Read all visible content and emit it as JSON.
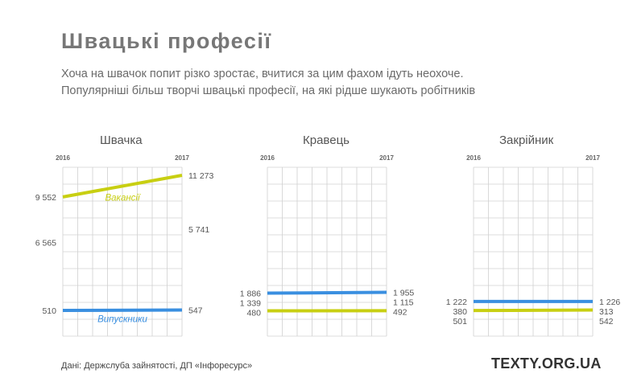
{
  "header": {
    "title": "Швацькі професії",
    "subtitle_lines": [
      "Хоча на швачок попит різко зростає, вчитися за цим фахом ідуть неохоче.",
      "Популярніші більш творчі швацькі професії, на які рідше шукають робітників"
    ]
  },
  "footer": {
    "source": "Дані: Держслуба зайнятості, ДП «Інфоресурс»",
    "logo": "TEXTY.ORG.UA"
  },
  "colors": {
    "vacancies": "#c8cf12",
    "graduates": "#3a8fe0",
    "grid": "#d0d0d0"
  },
  "chart_data": [
    {
      "type": "line",
      "title": "Швачка",
      "x": [
        "2016",
        "2017"
      ],
      "ylim": [
        0,
        11273
      ],
      "series": [
        {
          "name": "Вакансії",
          "key": "vacancies",
          "values": [
            9552,
            11273
          ],
          "labels": [
            "9 552",
            "11 273"
          ]
        },
        {
          "name": "Випускники",
          "key": "graduates",
          "values": [
            510,
            547
          ],
          "labels": [
            "510",
            "547"
          ]
        }
      ],
      "extra_labels": {
        "left": [
          "6 565"
        ],
        "right": [
          "5 741"
        ]
      }
    },
    {
      "type": "line",
      "title": "Кравець",
      "x": [
        "2016",
        "2017"
      ],
      "ylim": [
        0,
        11273
      ],
      "series": [
        {
          "name": "",
          "key": "graduates",
          "values": [
            1886,
            1955
          ],
          "labels": [
            "1 886",
            "1 955"
          ]
        },
        {
          "name": "",
          "key": "vacancies",
          "values": [
            480,
            492
          ],
          "labels": [
            "480",
            "492"
          ]
        }
      ],
      "extra_labels": {
        "left": [
          "1 339"
        ],
        "right": [
          "1 115"
        ]
      }
    },
    {
      "type": "line",
      "title": "Закрійник",
      "x": [
        "2016",
        "2017"
      ],
      "ylim": [
        0,
        11273
      ],
      "series": [
        {
          "name": "",
          "key": "graduates",
          "values": [
            1222,
            1226
          ],
          "labels": [
            "1 222",
            "1 226"
          ]
        },
        {
          "name": "",
          "key": "vacancies",
          "values": [
            501,
            542
          ],
          "labels": [
            "501",
            "542"
          ]
        }
      ],
      "extra_labels": {
        "left": [
          "380"
        ],
        "right": [
          "313"
        ]
      }
    }
  ]
}
